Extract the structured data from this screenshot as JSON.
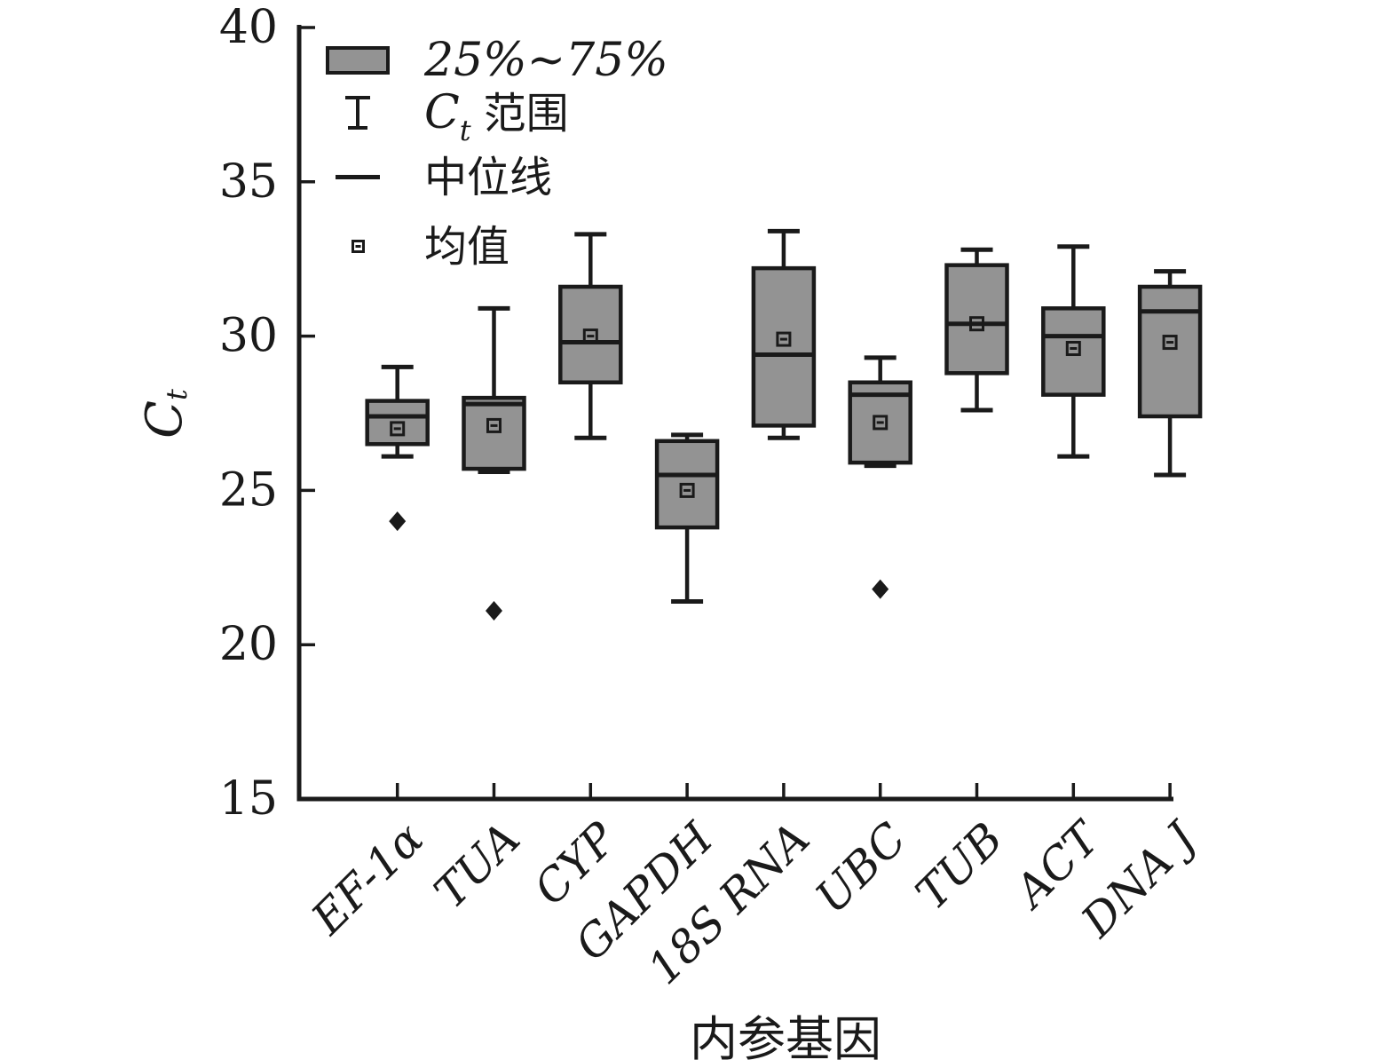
{
  "figure": {
    "background": "#ffffff",
    "box_fill": "#939393",
    "line_color": "#1a1a1a"
  },
  "axes": {
    "ylabel_main": "C",
    "ylabel_sub": "t",
    "xlabel": "内参基因"
  },
  "legend": {
    "box_label": "25%~75%",
    "range_label_main": "C",
    "range_label_sub": "t",
    "range_label_rest": "范围",
    "median_label": "中位线",
    "mean_label": "均值"
  },
  "chart_data": {
    "type": "boxplot",
    "title": "",
    "xlabel": "内参基因",
    "ylabel": "C_t",
    "ylim": [
      15,
      40
    ],
    "yticks": [
      15,
      20,
      25,
      30,
      35,
      40
    ],
    "grid": false,
    "legend_position": "top-left",
    "legend_entries": [
      "25%~75%",
      "C_t 范围",
      "中位线",
      "均值"
    ],
    "categories": [
      "EF-1α",
      "TUA",
      "CYP",
      "GAPDH",
      "18S RNA",
      "UBC",
      "TUB",
      "ACT",
      "DNA J"
    ],
    "boxes": [
      {
        "label": "EF-1α",
        "whisker_low": 26.1,
        "q1": 26.5,
        "median": 27.4,
        "q3": 27.9,
        "whisker_high": 29.0,
        "mean": 27.0,
        "outliers": [
          24.0
        ]
      },
      {
        "label": "TUA",
        "whisker_low": 25.6,
        "q1": 25.7,
        "median": 27.8,
        "q3": 28.0,
        "whisker_high": 30.9,
        "mean": 27.1,
        "outliers": [
          21.1
        ]
      },
      {
        "label": "CYP",
        "whisker_low": 26.7,
        "q1": 28.5,
        "median": 29.8,
        "q3": 31.6,
        "whisker_high": 33.3,
        "mean": 30.0,
        "outliers": []
      },
      {
        "label": "GAPDH",
        "whisker_low": 21.4,
        "q1": 23.8,
        "median": 25.5,
        "q3": 26.6,
        "whisker_high": 26.8,
        "mean": 25.0,
        "outliers": []
      },
      {
        "label": "18S RNA",
        "whisker_low": 26.7,
        "q1": 27.1,
        "median": 29.4,
        "q3": 32.2,
        "whisker_high": 33.4,
        "mean": 29.9,
        "outliers": []
      },
      {
        "label": "UBC",
        "whisker_low": 25.8,
        "q1": 25.9,
        "median": 28.1,
        "q3": 28.5,
        "whisker_high": 29.3,
        "mean": 27.2,
        "outliers": [
          21.8
        ]
      },
      {
        "label": "TUB",
        "whisker_low": 27.6,
        "q1": 28.8,
        "median": 30.4,
        "q3": 32.3,
        "whisker_high": 32.8,
        "mean": 30.4,
        "outliers": []
      },
      {
        "label": "ACT",
        "whisker_low": 26.1,
        "q1": 28.1,
        "median": 30.0,
        "q3": 30.9,
        "whisker_high": 32.9,
        "mean": 29.6,
        "outliers": []
      },
      {
        "label": "DNA J",
        "whisker_low": 25.5,
        "q1": 27.4,
        "median": 30.8,
        "q3": 31.6,
        "whisker_high": 32.1,
        "mean": 29.8,
        "outliers": []
      }
    ]
  }
}
